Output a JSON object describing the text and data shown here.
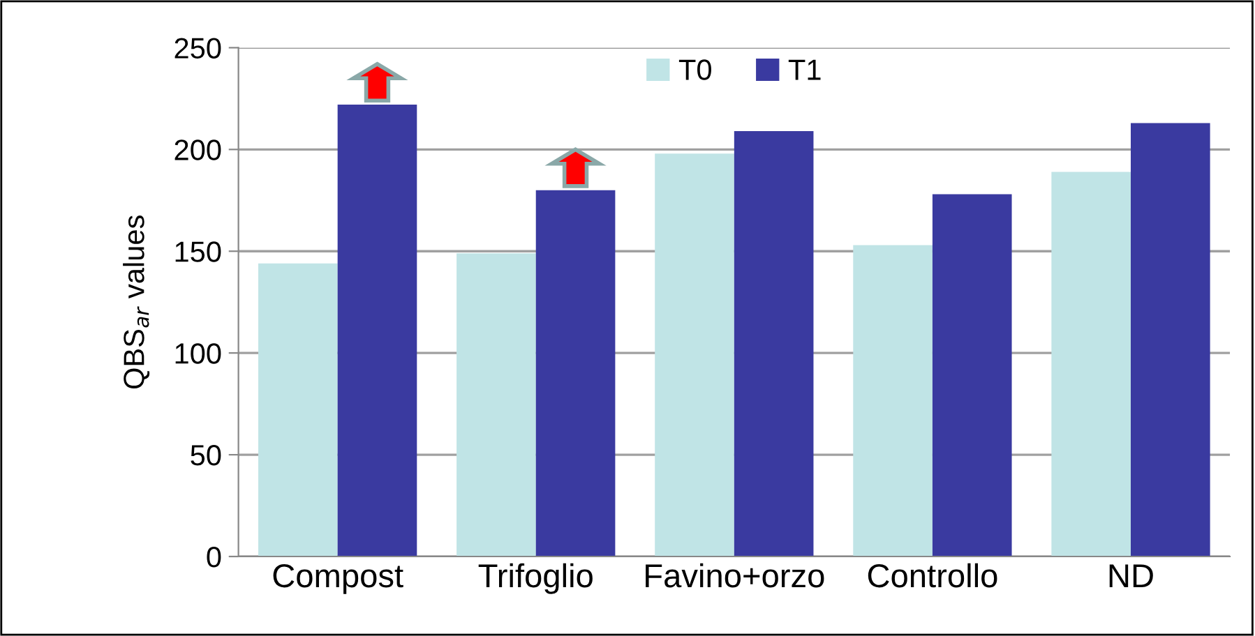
{
  "chart_data": {
    "type": "bar",
    "ylabel": "QBS$_{ar}$ values",
    "categories": [
      "Compost",
      "Trifoglio",
      "Favino+orzo",
      "Controllo",
      "ND"
    ],
    "series": [
      {
        "name": "T0",
        "color": "#c0e4e6",
        "values": [
          144,
          149,
          198,
          153,
          189
        ]
      },
      {
        "name": "T1",
        "color": "#3a3aa0",
        "values": [
          222,
          180,
          209,
          178,
          213
        ]
      }
    ],
    "ylim": [
      0,
      250
    ],
    "yticks": [
      0,
      50,
      100,
      150,
      200,
      250
    ],
    "grid": "y",
    "legend": "top"
  }
}
